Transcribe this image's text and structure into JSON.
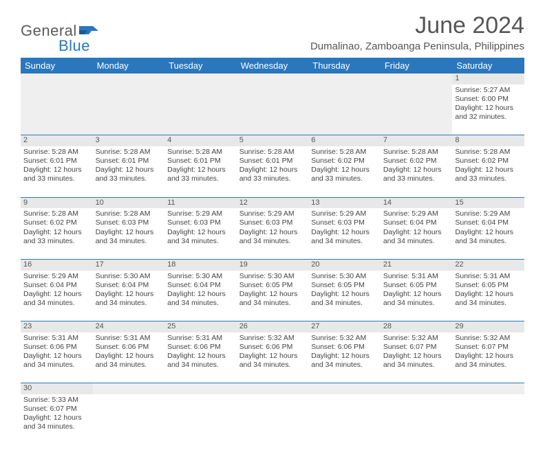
{
  "colors": {
    "header_bg": "#2a77bd",
    "header_text": "#ffffff",
    "row_alt_bg": "#e8e8e8",
    "text": "#444444",
    "title_text": "#555555",
    "divider": "#2a77bd",
    "logo_gray": "#5a5a5a",
    "logo_blue": "#2a77bd"
  },
  "logo": {
    "part1": "General",
    "part2": "Blue"
  },
  "title": "June 2024",
  "subtitle": "Dumalinao, Zamboanga Peninsula, Philippines",
  "weekdays": [
    "Sunday",
    "Monday",
    "Tuesday",
    "Wednesday",
    "Thursday",
    "Friday",
    "Saturday"
  ],
  "weeks": [
    {
      "nums": [
        "",
        "",
        "",
        "",
        "",
        "",
        "1"
      ],
      "cells": [
        null,
        null,
        null,
        null,
        null,
        null,
        {
          "sunrise": "Sunrise: 5:27 AM",
          "sunset": "Sunset: 6:00 PM",
          "day1": "Daylight: 12 hours",
          "day2": "and 32 minutes."
        }
      ]
    },
    {
      "nums": [
        "2",
        "3",
        "4",
        "5",
        "6",
        "7",
        "8"
      ],
      "cells": [
        {
          "sunrise": "Sunrise: 5:28 AM",
          "sunset": "Sunset: 6:01 PM",
          "day1": "Daylight: 12 hours",
          "day2": "and 33 minutes."
        },
        {
          "sunrise": "Sunrise: 5:28 AM",
          "sunset": "Sunset: 6:01 PM",
          "day1": "Daylight: 12 hours",
          "day2": "and 33 minutes."
        },
        {
          "sunrise": "Sunrise: 5:28 AM",
          "sunset": "Sunset: 6:01 PM",
          "day1": "Daylight: 12 hours",
          "day2": "and 33 minutes."
        },
        {
          "sunrise": "Sunrise: 5:28 AM",
          "sunset": "Sunset: 6:01 PM",
          "day1": "Daylight: 12 hours",
          "day2": "and 33 minutes."
        },
        {
          "sunrise": "Sunrise: 5:28 AM",
          "sunset": "Sunset: 6:02 PM",
          "day1": "Daylight: 12 hours",
          "day2": "and 33 minutes."
        },
        {
          "sunrise": "Sunrise: 5:28 AM",
          "sunset": "Sunset: 6:02 PM",
          "day1": "Daylight: 12 hours",
          "day2": "and 33 minutes."
        },
        {
          "sunrise": "Sunrise: 5:28 AM",
          "sunset": "Sunset: 6:02 PM",
          "day1": "Daylight: 12 hours",
          "day2": "and 33 minutes."
        }
      ]
    },
    {
      "nums": [
        "9",
        "10",
        "11",
        "12",
        "13",
        "14",
        "15"
      ],
      "cells": [
        {
          "sunrise": "Sunrise: 5:28 AM",
          "sunset": "Sunset: 6:02 PM",
          "day1": "Daylight: 12 hours",
          "day2": "and 33 minutes."
        },
        {
          "sunrise": "Sunrise: 5:28 AM",
          "sunset": "Sunset: 6:03 PM",
          "day1": "Daylight: 12 hours",
          "day2": "and 34 minutes."
        },
        {
          "sunrise": "Sunrise: 5:29 AM",
          "sunset": "Sunset: 6:03 PM",
          "day1": "Daylight: 12 hours",
          "day2": "and 34 minutes."
        },
        {
          "sunrise": "Sunrise: 5:29 AM",
          "sunset": "Sunset: 6:03 PM",
          "day1": "Daylight: 12 hours",
          "day2": "and 34 minutes."
        },
        {
          "sunrise": "Sunrise: 5:29 AM",
          "sunset": "Sunset: 6:03 PM",
          "day1": "Daylight: 12 hours",
          "day2": "and 34 minutes."
        },
        {
          "sunrise": "Sunrise: 5:29 AM",
          "sunset": "Sunset: 6:04 PM",
          "day1": "Daylight: 12 hours",
          "day2": "and 34 minutes."
        },
        {
          "sunrise": "Sunrise: 5:29 AM",
          "sunset": "Sunset: 6:04 PM",
          "day1": "Daylight: 12 hours",
          "day2": "and 34 minutes."
        }
      ]
    },
    {
      "nums": [
        "16",
        "17",
        "18",
        "19",
        "20",
        "21",
        "22"
      ],
      "cells": [
        {
          "sunrise": "Sunrise: 5:29 AM",
          "sunset": "Sunset: 6:04 PM",
          "day1": "Daylight: 12 hours",
          "day2": "and 34 minutes."
        },
        {
          "sunrise": "Sunrise: 5:30 AM",
          "sunset": "Sunset: 6:04 PM",
          "day1": "Daylight: 12 hours",
          "day2": "and 34 minutes."
        },
        {
          "sunrise": "Sunrise: 5:30 AM",
          "sunset": "Sunset: 6:04 PM",
          "day1": "Daylight: 12 hours",
          "day2": "and 34 minutes."
        },
        {
          "sunrise": "Sunrise: 5:30 AM",
          "sunset": "Sunset: 6:05 PM",
          "day1": "Daylight: 12 hours",
          "day2": "and 34 minutes."
        },
        {
          "sunrise": "Sunrise: 5:30 AM",
          "sunset": "Sunset: 6:05 PM",
          "day1": "Daylight: 12 hours",
          "day2": "and 34 minutes."
        },
        {
          "sunrise": "Sunrise: 5:31 AM",
          "sunset": "Sunset: 6:05 PM",
          "day1": "Daylight: 12 hours",
          "day2": "and 34 minutes."
        },
        {
          "sunrise": "Sunrise: 5:31 AM",
          "sunset": "Sunset: 6:05 PM",
          "day1": "Daylight: 12 hours",
          "day2": "and 34 minutes."
        }
      ]
    },
    {
      "nums": [
        "23",
        "24",
        "25",
        "26",
        "27",
        "28",
        "29"
      ],
      "cells": [
        {
          "sunrise": "Sunrise: 5:31 AM",
          "sunset": "Sunset: 6:06 PM",
          "day1": "Daylight: 12 hours",
          "day2": "and 34 minutes."
        },
        {
          "sunrise": "Sunrise: 5:31 AM",
          "sunset": "Sunset: 6:06 PM",
          "day1": "Daylight: 12 hours",
          "day2": "and 34 minutes."
        },
        {
          "sunrise": "Sunrise: 5:31 AM",
          "sunset": "Sunset: 6:06 PM",
          "day1": "Daylight: 12 hours",
          "day2": "and 34 minutes."
        },
        {
          "sunrise": "Sunrise: 5:32 AM",
          "sunset": "Sunset: 6:06 PM",
          "day1": "Daylight: 12 hours",
          "day2": "and 34 minutes."
        },
        {
          "sunrise": "Sunrise: 5:32 AM",
          "sunset": "Sunset: 6:06 PM",
          "day1": "Daylight: 12 hours",
          "day2": "and 34 minutes."
        },
        {
          "sunrise": "Sunrise: 5:32 AM",
          "sunset": "Sunset: 6:07 PM",
          "day1": "Daylight: 12 hours",
          "day2": "and 34 minutes."
        },
        {
          "sunrise": "Sunrise: 5:32 AM",
          "sunset": "Sunset: 6:07 PM",
          "day1": "Daylight: 12 hours",
          "day2": "and 34 minutes."
        }
      ]
    },
    {
      "nums": [
        "30",
        "",
        "",
        "",
        "",
        "",
        ""
      ],
      "cells": [
        {
          "sunrise": "Sunrise: 5:33 AM",
          "sunset": "Sunset: 6:07 PM",
          "day1": "Daylight: 12 hours",
          "day2": "and 34 minutes."
        },
        null,
        null,
        null,
        null,
        null,
        null
      ]
    }
  ]
}
